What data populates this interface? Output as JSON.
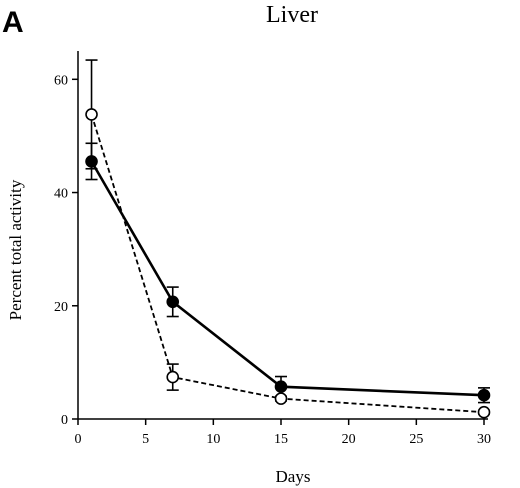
{
  "panel_label": "A",
  "chart_data": {
    "type": "line",
    "title": "Liver",
    "xlabel": "Days",
    "ylabel": "Percent total activity",
    "xlim": [
      0,
      30
    ],
    "ylim": [
      0,
      65
    ],
    "xticks": [
      0,
      5,
      10,
      15,
      20,
      25,
      30
    ],
    "yticks": [
      0,
      20,
      40,
      60
    ],
    "grid": false,
    "series": [
      {
        "marker": "filled-circle",
        "line_style": "solid",
        "x": [
          1,
          7,
          15,
          30
        ],
        "y": [
          45.5,
          20.7,
          5.7,
          4.2
        ],
        "error": [
          3.2,
          2.6,
          1.8,
          1.3
        ]
      },
      {
        "marker": "open-circle",
        "line_style": "dashed",
        "x": [
          1,
          7,
          15,
          30
        ],
        "y": [
          53.8,
          7.4,
          3.6,
          1.2
        ],
        "error": [
          9.6,
          2.3,
          0.4,
          0.3
        ]
      }
    ]
  }
}
